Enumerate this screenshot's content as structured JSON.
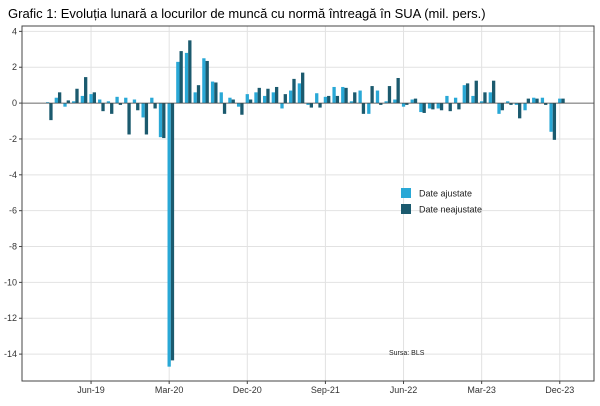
{
  "chart_data": {
    "type": "bar",
    "title": "Grafic 1: Evoluția lunară a locurilor de muncă cu normă întreagă în SUA (mil. pers.)",
    "xlabel": "",
    "ylabel": "",
    "ylim": [
      -15.5,
      4.3
    ],
    "yticks": [
      4,
      2,
      0,
      -2,
      -4,
      -6,
      -8,
      -10,
      -12,
      -14
    ],
    "x_tick_labels": [
      "Jun-19",
      "Mar-20",
      "Dec-20",
      "Sep-21",
      "Jun-22",
      "Mar-23",
      "Dec-23"
    ],
    "x_tick_indices": [
      5,
      14,
      23,
      32,
      41,
      50,
      59
    ],
    "grid": true,
    "legend_position": "center-right",
    "source": "Sursa: BLS",
    "colors": {
      "adjusted": "#29a8d6",
      "unadjusted": "#1b5a6e",
      "grid": "#e2e2e2",
      "axis": "#444444"
    },
    "categories": [
      "Jan-19",
      "Feb-19",
      "Mar-19",
      "Apr-19",
      "May-19",
      "Jun-19",
      "Jul-19",
      "Aug-19",
      "Sep-19",
      "Oct-19",
      "Nov-19",
      "Dec-19",
      "Jan-20",
      "Feb-20",
      "Mar-20",
      "Apr-20",
      "May-20",
      "Jun-20",
      "Jul-20",
      "Aug-20",
      "Sep-20",
      "Oct-20",
      "Nov-20",
      "Dec-20",
      "Jan-21",
      "Feb-21",
      "Mar-21",
      "Apr-21",
      "May-21",
      "Jun-21",
      "Jul-21",
      "Aug-21",
      "Sep-21",
      "Oct-21",
      "Nov-21",
      "Dec-21",
      "Jan-22",
      "Feb-22",
      "Mar-22",
      "Apr-22",
      "May-22",
      "Jun-22",
      "Jul-22",
      "Aug-22",
      "Sep-22",
      "Oct-22",
      "Nov-22",
      "Dec-22",
      "Jan-23",
      "Feb-23",
      "Mar-23",
      "Apr-23",
      "May-23",
      "Jun-23",
      "Jul-23",
      "Aug-23",
      "Sep-23",
      "Oct-23",
      "Nov-23",
      "Dec-23"
    ],
    "series": [
      {
        "name": "Date ajustate",
        "values": [
          0.05,
          0.3,
          -0.2,
          0.1,
          0.4,
          0.5,
          0.2,
          0.1,
          0.35,
          0.3,
          0.2,
          -0.8,
          0.3,
          -1.9,
          -14.7,
          2.3,
          2.8,
          0.6,
          2.5,
          1.2,
          0.6,
          0.3,
          -0.2,
          0.5,
          0.6,
          0.4,
          0.6,
          -0.3,
          0.7,
          1.1,
          -0.1,
          0.55,
          0.35,
          0.9,
          0.9,
          0.1,
          0.7,
          -0.6,
          0.7,
          0.1,
          0.2,
          -0.2,
          0.2,
          -0.5,
          -0.3,
          -0.3,
          0.4,
          0.3,
          1.0,
          0.4,
          0.1,
          0.6,
          -0.6,
          0.1,
          -0.1,
          -0.4,
          0.3,
          0.3,
          -1.6,
          0.25
        ]
      },
      {
        "name": "Date neajustate",
        "values": [
          -0.95,
          0.6,
          0.15,
          0.8,
          1.45,
          0.6,
          -0.45,
          -0.6,
          -0.1,
          -1.75,
          -0.4,
          -1.75,
          -0.3,
          -1.95,
          -14.35,
          2.9,
          3.5,
          1.0,
          2.35,
          1.15,
          -0.6,
          0.2,
          -0.65,
          0.2,
          0.85,
          0.8,
          0.9,
          0.5,
          1.35,
          1.7,
          -0.25,
          -0.25,
          0.4,
          0.4,
          0.85,
          0.6,
          -0.6,
          0.95,
          -0.1,
          0.95,
          1.4,
          -0.1,
          0.25,
          -0.55,
          -0.35,
          -0.4,
          -0.45,
          -0.35,
          1.1,
          1.25,
          0.6,
          1.25,
          -0.4,
          -0.1,
          -0.85,
          0.25,
          0.25,
          -0.1,
          -2.05,
          0.25
        ]
      }
    ]
  }
}
